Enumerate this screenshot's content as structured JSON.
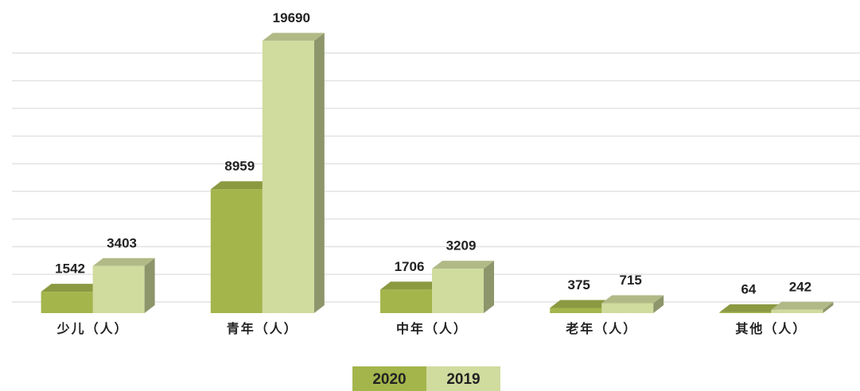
{
  "chart_data": {
    "type": "bar3d",
    "categories": [
      "少儿（人）",
      "青年（人）",
      "中年（人）",
      "老年（人）",
      "其他（人）"
    ],
    "series": [
      {
        "name": "2020",
        "color": "#a4b54c",
        "values": [
          1542,
          8959,
          1706,
          375,
          64
        ]
      },
      {
        "name": "2019",
        "color": "#d0db9e",
        "values": [
          3403,
          19690,
          3209,
          715,
          242
        ]
      }
    ],
    "ylim": [
      0,
      20000
    ],
    "yticks": [
      0,
      2000,
      4000,
      6000,
      8000,
      10000,
      12000,
      14000,
      16000,
      18000
    ],
    "grid": true,
    "legend": "bottom"
  }
}
